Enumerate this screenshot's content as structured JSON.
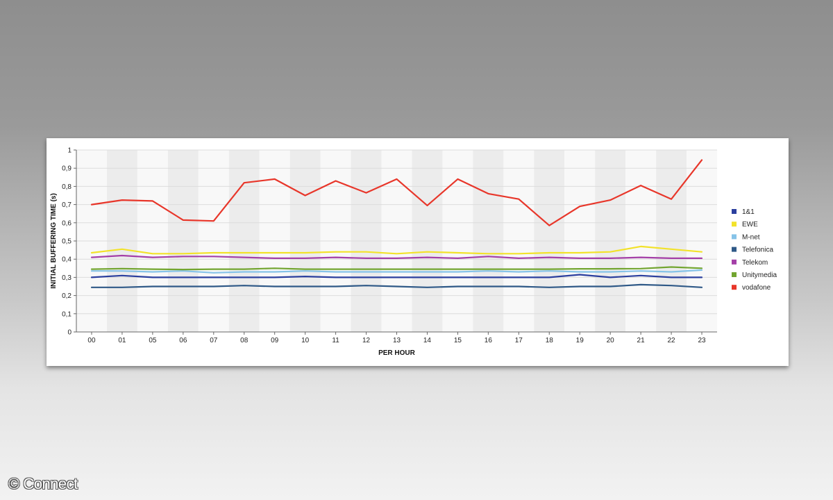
{
  "chart_data": {
    "type": "line",
    "ylabel": "INITIAL BUFFERING TIME (s)",
    "xlabel": "PER HOUR",
    "categories": [
      "00",
      "01",
      "05",
      "06",
      "07",
      "08",
      "09",
      "10",
      "11",
      "12",
      "13",
      "14",
      "15",
      "16",
      "17",
      "18",
      "19",
      "20",
      "21",
      "22",
      "23"
    ],
    "ylim": [
      0,
      1
    ],
    "yticks": [
      "0",
      "0,1",
      "0,2",
      "0,3",
      "0,4",
      "0,5",
      "0,6",
      "0,7",
      "0,8",
      "0,9",
      "1"
    ],
    "grid": true,
    "legend_position": "right",
    "series": [
      {
        "name": "1&1",
        "color": "#2b3f9e",
        "values": [
          0.3,
          0.31,
          0.3,
          0.3,
          0.3,
          0.3,
          0.3,
          0.305,
          0.3,
          0.3,
          0.3,
          0.3,
          0.3,
          0.3,
          0.3,
          0.3,
          0.315,
          0.3,
          0.31,
          0.3,
          0.3
        ]
      },
      {
        "name": "EWE",
        "color": "#f2e22a",
        "values": [
          0.435,
          0.455,
          0.43,
          0.43,
          0.435,
          0.435,
          0.435,
          0.435,
          0.44,
          0.44,
          0.43,
          0.44,
          0.435,
          0.43,
          0.43,
          0.435,
          0.435,
          0.44,
          0.47,
          0.455,
          0.44
        ]
      },
      {
        "name": "M-net",
        "color": "#86c3e8",
        "values": [
          0.335,
          0.335,
          0.33,
          0.335,
          0.325,
          0.33,
          0.33,
          0.335,
          0.33,
          0.33,
          0.33,
          0.33,
          0.33,
          0.335,
          0.33,
          0.335,
          0.33,
          0.33,
          0.335,
          0.33,
          0.34
        ]
      },
      {
        "name": "Telefonica",
        "color": "#2f5987",
        "values": [
          0.245,
          0.245,
          0.25,
          0.25,
          0.25,
          0.255,
          0.25,
          0.25,
          0.25,
          0.255,
          0.25,
          0.245,
          0.25,
          0.25,
          0.25,
          0.245,
          0.25,
          0.25,
          0.26,
          0.255,
          0.245
        ]
      },
      {
        "name": "Telekom",
        "color": "#a43fa7",
        "values": [
          0.41,
          0.42,
          0.41,
          0.415,
          0.415,
          0.41,
          0.405,
          0.405,
          0.41,
          0.405,
          0.405,
          0.41,
          0.405,
          0.415,
          0.405,
          0.41,
          0.405,
          0.405,
          0.41,
          0.405,
          0.405
        ]
      },
      {
        "name": "Unitymedia",
        "color": "#72a530",
        "values": [
          0.345,
          0.348,
          0.345,
          0.343,
          0.345,
          0.345,
          0.35,
          0.345,
          0.345,
          0.345,
          0.345,
          0.345,
          0.345,
          0.345,
          0.345,
          0.345,
          0.347,
          0.347,
          0.348,
          0.357,
          0.35
        ]
      },
      {
        "name": "vodafone",
        "color": "#e8362a",
        "values": [
          0.7,
          0.725,
          0.72,
          0.615,
          0.61,
          0.82,
          0.84,
          0.75,
          0.83,
          0.765,
          0.84,
          0.695,
          0.84,
          0.76,
          0.73,
          0.585,
          0.69,
          0.725,
          0.805,
          0.73,
          0.945
        ]
      }
    ]
  },
  "watermark": "© Connect"
}
